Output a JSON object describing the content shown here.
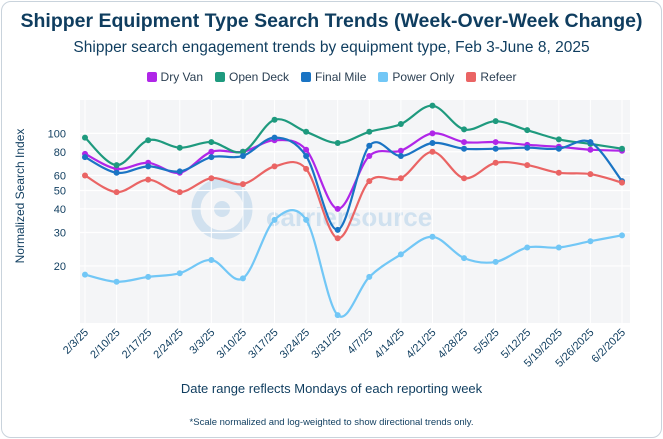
{
  "chart_data": {
    "type": "line",
    "title": "Shipper Equipment Type Search Trends (Week-Over-Week Change)",
    "subtitle": "Shipper search engagement trends by equipment type, Feb 3-June 8, 2025",
    "xlabel": "Date range reflects Mondays of each reporting week",
    "ylabel": "Normalized Search Index",
    "footnote": "*Scale normalized and log-weighted to show directional trends only.",
    "yscale": "log",
    "ylim": [
      10,
      150
    ],
    "yticks": [
      20,
      30,
      40,
      50,
      60,
      80,
      100
    ],
    "grid": true,
    "legend_position": "top",
    "categories": [
      "2/3/25",
      "2/10/25",
      "2/17/25",
      "2/24/25",
      "3/3/25",
      "3/10/25",
      "3/17/25",
      "3/24/25",
      "3/31/25",
      "4/7/25",
      "4/14/25",
      "4/21/25",
      "4/28/25",
      "5/5/25",
      "5/12/25",
      "5/19/2025",
      "5/26/2025",
      "6/2/2025"
    ],
    "series": [
      {
        "name": "Dry Van",
        "color": "#b026e8",
        "values": [
          78,
          65,
          70,
          62,
          80,
          80,
          92,
          82,
          40,
          76,
          81,
          100,
          90,
          90,
          87,
          85,
          82,
          81
        ]
      },
      {
        "name": "Open Deck",
        "color": "#1e9a7e",
        "values": [
          95,
          68,
          92,
          84,
          90,
          80,
          118,
          102,
          89,
          102,
          112,
          140,
          105,
          116,
          104,
          93,
          88,
          83
        ]
      },
      {
        "name": "Final Mile",
        "color": "#1a74c4",
        "values": [
          75,
          62,
          67,
          63,
          75,
          76,
          95,
          76,
          31,
          86,
          76,
          89,
          83,
          83,
          84,
          83,
          90,
          56
        ]
      },
      {
        "name": "Power Only",
        "color": "#72c7f6",
        "values": [
          18,
          16.5,
          17.5,
          18.3,
          21.5,
          17.2,
          35,
          35,
          11,
          17.5,
          23,
          28.5,
          22,
          21,
          25,
          25,
          27,
          29
        ]
      },
      {
        "name": "Refeer",
        "color": "#ea6464",
        "values": [
          60,
          49,
          57,
          49,
          58,
          54,
          67,
          65,
          28,
          56,
          58,
          80,
          58,
          70,
          68,
          62,
          61,
          55
        ]
      }
    ]
  },
  "watermark": "carriersource"
}
